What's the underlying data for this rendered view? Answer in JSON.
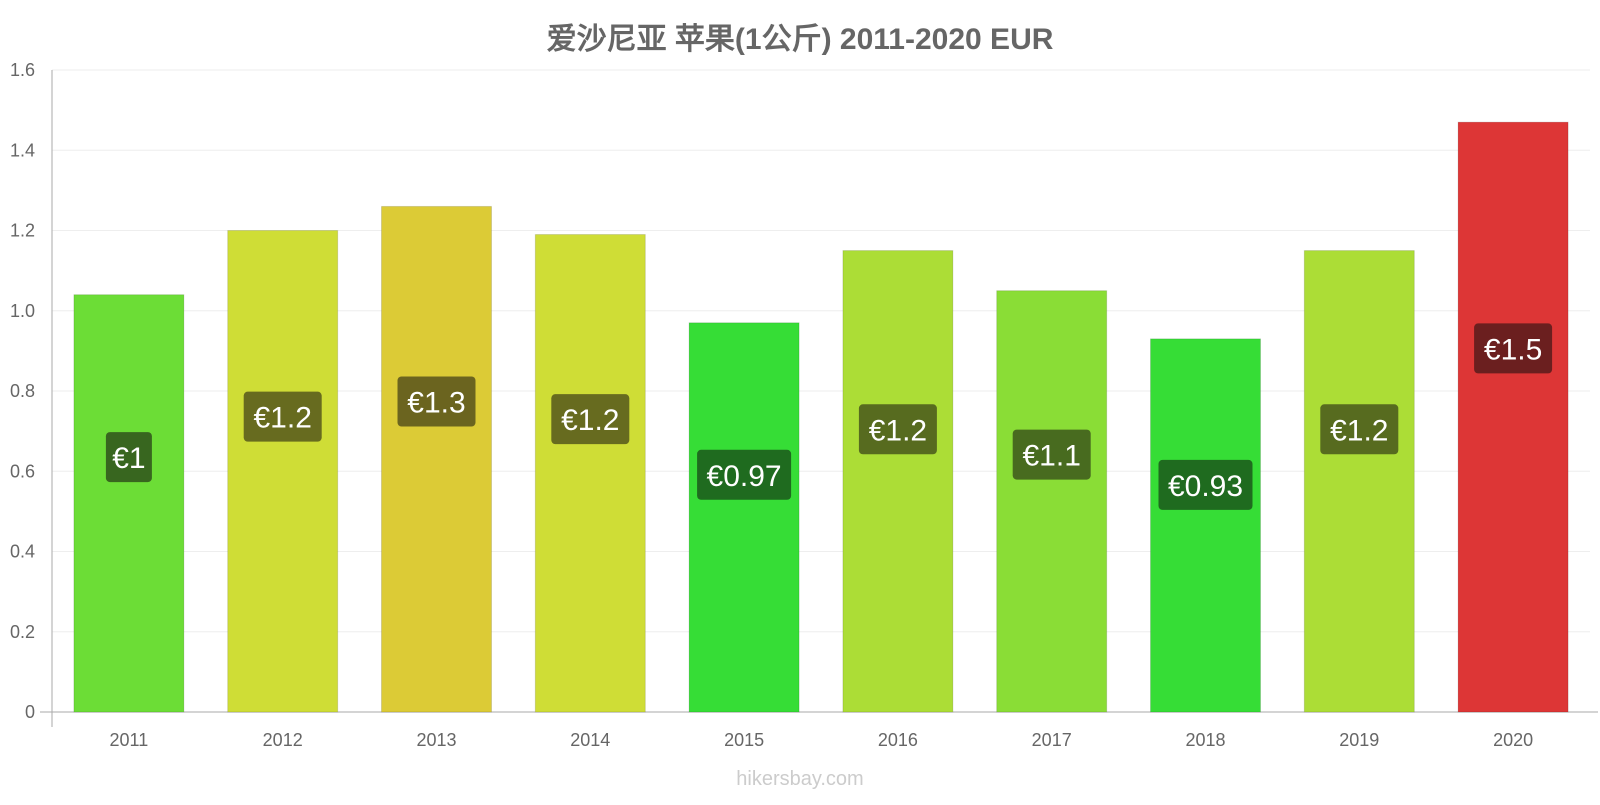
{
  "title": "爱沙尼亚 苹果(1公斤) 2011-2020 EUR",
  "watermark": "hikersbay.com",
  "chart_data": {
    "type": "bar",
    "title": "爱沙尼亚 苹果(1公斤) 2011-2020 EUR",
    "xlabel": "",
    "ylabel": "",
    "ylim": [
      0,
      1.6
    ],
    "yticks": [
      0,
      0.2,
      0.4,
      0.6,
      0.8,
      1.0,
      1.2,
      1.4,
      1.6
    ],
    "ytick_labels": [
      "0",
      "0.2",
      "0.4",
      "0.6",
      "0.8",
      "1.0",
      "1.2",
      "1.4",
      "1.6"
    ],
    "grid": true,
    "legend": "none",
    "categories": [
      "2011",
      "2012",
      "2013",
      "2014",
      "2015",
      "2016",
      "2017",
      "2018",
      "2019",
      "2020"
    ],
    "values": [
      1.04,
      1.2,
      1.26,
      1.19,
      0.97,
      1.15,
      1.05,
      0.93,
      1.15,
      1.47
    ],
    "data_labels": [
      "€1",
      "€1.2",
      "€1.3",
      "€1.2",
      "€0.97",
      "€1.2",
      "€1.1",
      "€0.93",
      "€1.2",
      "€1.5"
    ],
    "bar_colors": [
      "#6cdd36",
      "#cfdd36",
      "#dccb36",
      "#cfdd36",
      "#36dd36",
      "#acdd36",
      "#8add36",
      "#36dd36",
      "#acdd36",
      "#dd3636"
    ],
    "label_bg_colors": [
      "#38661f",
      "#676b1f",
      "#6b641f",
      "#676b1f",
      "#1f6b1f",
      "#576b1f",
      "#486b1f",
      "#1f6b1f",
      "#576b1f",
      "#6b1f1f"
    ]
  }
}
